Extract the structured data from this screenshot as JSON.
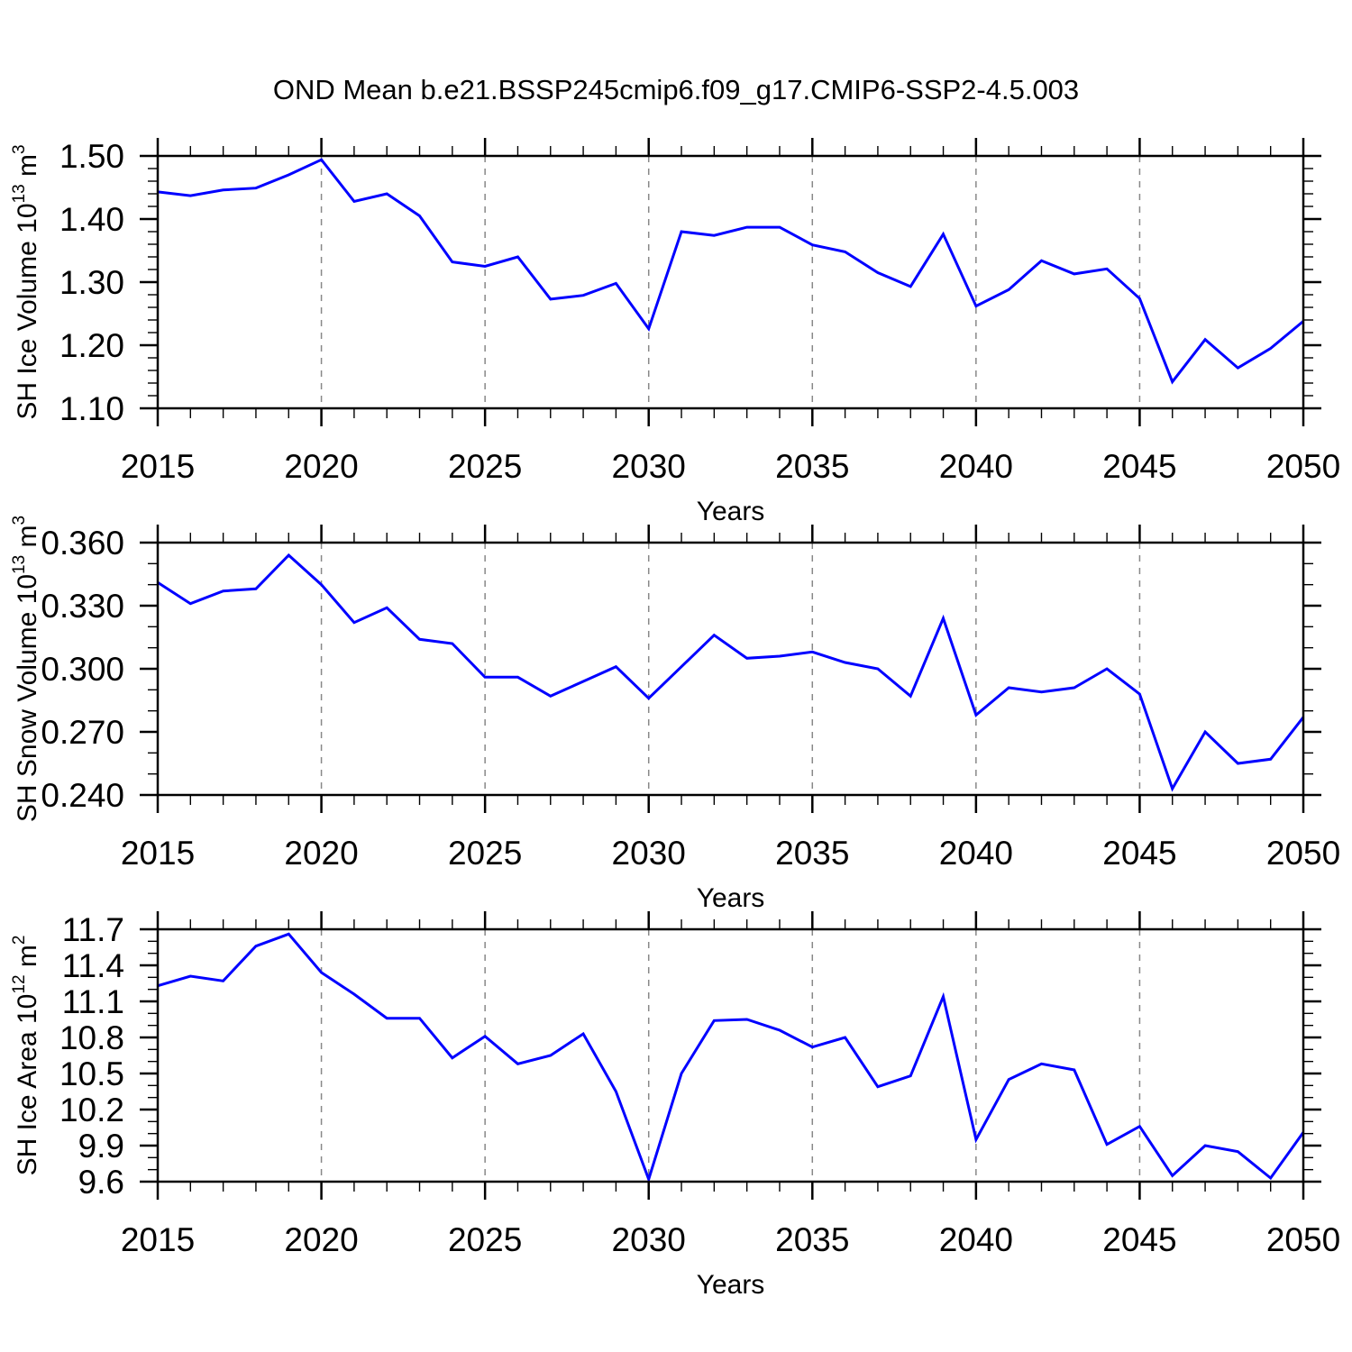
{
  "title": "OND Mean b.e21.BSSP245cmip6.f09_g17.CMIP6-SSP2-4.5.003",
  "chart_data": [
    {
      "type": "line",
      "name": "sh-ice-volume",
      "xlabel": "Years",
      "ylabel": "SH Ice Volume 10^13 m^3",
      "ylabel_segments": [
        {
          "t": "SH Ice Volume 10"
        },
        {
          "t": "13",
          "sup": true
        },
        {
          "t": " m"
        },
        {
          "t": "3",
          "sup": true
        }
      ],
      "x": [
        2015,
        2016,
        2017,
        2018,
        2019,
        2020,
        2021,
        2022,
        2023,
        2024,
        2025,
        2026,
        2027,
        2028,
        2029,
        2030,
        2031,
        2032,
        2033,
        2034,
        2035,
        2036,
        2037,
        2038,
        2039,
        2040,
        2041,
        2042,
        2043,
        2044,
        2045,
        2046,
        2047,
        2048,
        2049,
        2050
      ],
      "series": [
        {
          "name": "SH Ice Volume",
          "values": [
            1.443,
            1.437,
            1.446,
            1.449,
            1.47,
            1.494,
            1.428,
            1.44,
            1.405,
            1.332,
            1.325,
            1.34,
            1.273,
            1.279,
            1.298,
            1.226,
            1.38,
            1.374,
            1.387,
            1.387,
            1.359,
            1.348,
            1.315,
            1.293,
            1.376,
            1.262,
            1.288,
            1.334,
            1.313,
            1.321,
            1.274,
            1.142,
            1.209,
            1.164,
            1.195,
            1.238
          ]
        }
      ],
      "xlim": [
        2015,
        2050
      ],
      "ylim": [
        1.1,
        1.5
      ],
      "xticks": [
        2015,
        2020,
        2025,
        2030,
        2035,
        2040,
        2045,
        2050
      ],
      "xtick_labels": [
        "2015",
        "2020",
        "2025",
        "2030",
        "2035",
        "2040",
        "2045",
        "2050"
      ],
      "x_minor_step": 1,
      "yticks": [
        1.1,
        1.2,
        1.3,
        1.4,
        1.5
      ],
      "ytick_labels": [
        "1.10",
        "1.20",
        "1.30",
        "1.40",
        "1.50"
      ],
      "y_minor_step": 0.02,
      "grid_x": [
        2020,
        2025,
        2030,
        2035,
        2040,
        2045
      ],
      "grid_on": true,
      "legend": "none"
    },
    {
      "type": "line",
      "name": "sh-snow-volume",
      "xlabel": "Years",
      "ylabel": "SH Snow Volume 10^13 m^3",
      "ylabel_segments": [
        {
          "t": "SH Snow Volume 10"
        },
        {
          "t": "13",
          "sup": true
        },
        {
          "t": " m"
        },
        {
          "t": "3",
          "sup": true
        }
      ],
      "x": [
        2015,
        2016,
        2017,
        2018,
        2019,
        2020,
        2021,
        2022,
        2023,
        2024,
        2025,
        2026,
        2027,
        2028,
        2029,
        2030,
        2031,
        2032,
        2033,
        2034,
        2035,
        2036,
        2037,
        2038,
        2039,
        2040,
        2041,
        2042,
        2043,
        2044,
        2045,
        2046,
        2047,
        2048,
        2049,
        2050
      ],
      "series": [
        {
          "name": "SH Snow Volume",
          "values": [
            0.341,
            0.331,
            0.337,
            0.338,
            0.354,
            0.34,
            0.322,
            0.329,
            0.314,
            0.312,
            0.296,
            0.296,
            0.287,
            0.294,
            0.301,
            0.286,
            0.301,
            0.316,
            0.305,
            0.306,
            0.308,
            0.303,
            0.3,
            0.287,
            0.324,
            0.278,
            0.291,
            0.289,
            0.291,
            0.3,
            0.288,
            0.243,
            0.27,
            0.255,
            0.257,
            0.277
          ]
        }
      ],
      "xlim": [
        2015,
        2050
      ],
      "ylim": [
        0.24,
        0.36
      ],
      "xticks": [
        2015,
        2020,
        2025,
        2030,
        2035,
        2040,
        2045,
        2050
      ],
      "xtick_labels": [
        "2015",
        "2020",
        "2025",
        "2030",
        "2035",
        "2040",
        "2045",
        "2050"
      ],
      "x_minor_step": 1,
      "yticks": [
        0.24,
        0.27,
        0.3,
        0.33,
        0.36
      ],
      "ytick_labels": [
        "0.240",
        "0.270",
        "0.300",
        "0.330",
        "0.360"
      ],
      "y_minor_step": 0.01,
      "grid_x": [
        2020,
        2025,
        2030,
        2035,
        2040,
        2045
      ],
      "grid_on": true,
      "legend": "none"
    },
    {
      "type": "line",
      "name": "sh-ice-area",
      "xlabel": "Years",
      "ylabel": "SH Ice Area 10^12 m^2",
      "ylabel_segments": [
        {
          "t": "SH Ice Area 10"
        },
        {
          "t": "12",
          "sup": true
        },
        {
          "t": " m"
        },
        {
          "t": "2",
          "sup": true
        }
      ],
      "x": [
        2015,
        2016,
        2017,
        2018,
        2019,
        2020,
        2021,
        2022,
        2023,
        2024,
        2025,
        2026,
        2027,
        2028,
        2029,
        2030,
        2031,
        2032,
        2033,
        2034,
        2035,
        2036,
        2037,
        2038,
        2039,
        2040,
        2041,
        2042,
        2043,
        2044,
        2045,
        2046,
        2047,
        2048,
        2049,
        2050
      ],
      "series": [
        {
          "name": "SH Ice Area",
          "values": [
            11.23,
            11.31,
            11.27,
            11.56,
            11.66,
            11.34,
            11.16,
            10.96,
            10.96,
            10.63,
            10.81,
            10.58,
            10.65,
            10.83,
            10.35,
            9.62,
            10.5,
            10.94,
            10.95,
            10.86,
            10.72,
            10.8,
            10.39,
            10.48,
            11.14,
            9.95,
            10.45,
            10.58,
            10.53,
            9.91,
            10.06,
            9.65,
            9.9,
            9.85,
            9.63,
            10.01
          ]
        }
      ],
      "xlim": [
        2015,
        2050
      ],
      "ylim": [
        9.6,
        11.7
      ],
      "xticks": [
        2015,
        2020,
        2025,
        2030,
        2035,
        2040,
        2045,
        2050
      ],
      "xtick_labels": [
        "2015",
        "2020",
        "2025",
        "2030",
        "2035",
        "2040",
        "2045",
        "2050"
      ],
      "x_minor_step": 1,
      "yticks": [
        9.6,
        9.9,
        10.2,
        10.5,
        10.8,
        11.1,
        11.4,
        11.7
      ],
      "ytick_labels": [
        "9.6",
        "9.9",
        "10.2",
        "10.5",
        "10.8",
        "11.1",
        "11.4",
        "11.7"
      ],
      "y_minor_step": 0.1,
      "grid_x": [
        2020,
        2025,
        2030,
        2035,
        2040,
        2045
      ],
      "grid_on": true,
      "legend": "none"
    }
  ],
  "colors": {
    "line": "#0000ff",
    "grid": "#888888",
    "axis": "#000000",
    "background": "#ffffff"
  }
}
